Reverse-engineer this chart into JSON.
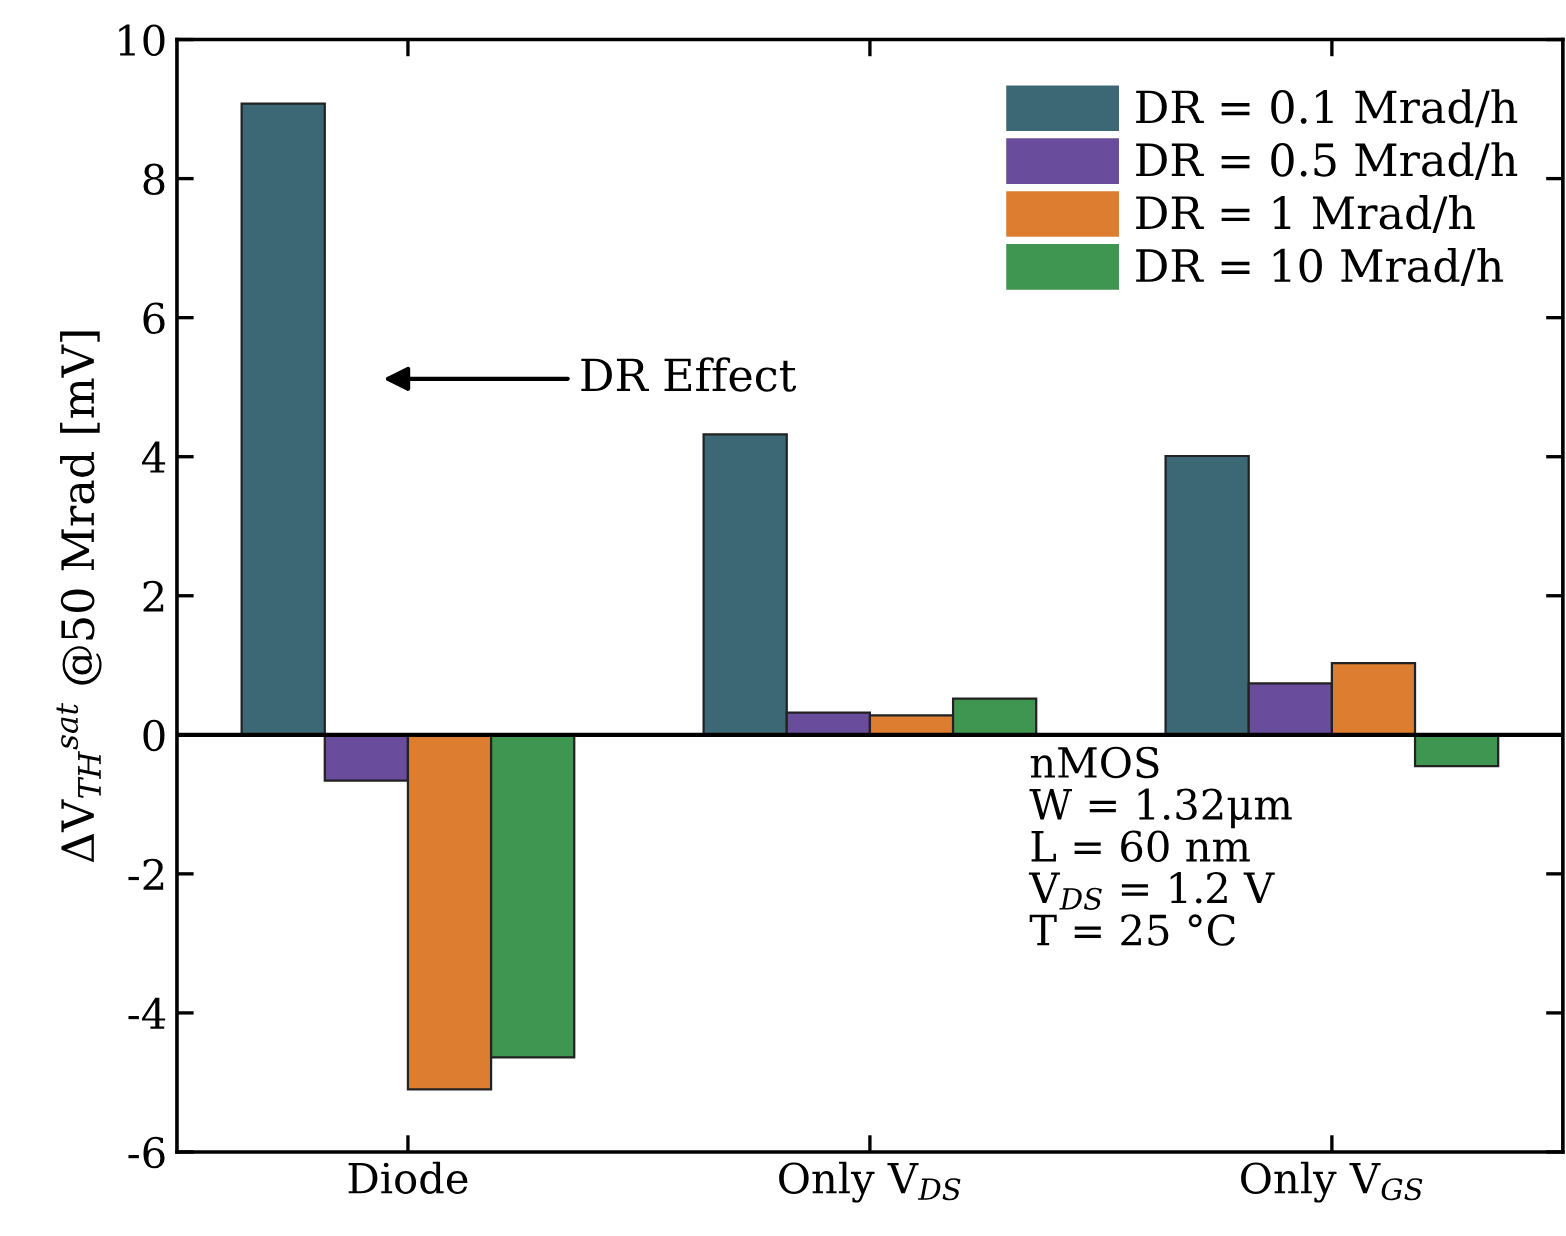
{
  "chart_data": {
    "type": "bar",
    "ylabel": "ΔV$_{TH}$$^{sat}$ @50 Mrad [mV]",
    "categories": [
      "Diode",
      "Only V$_{DS}$",
      "Only V$_{GS}$"
    ],
    "series": [
      {
        "name": "DR = 0.1 Mrad/h",
        "color": "#3b6874",
        "values": [
          9.08,
          4.32,
          4.01
        ]
      },
      {
        "name": "DR = 0.5 Mrad/h",
        "color": "#6a4c9c",
        "values": [
          -0.66,
          0.32,
          0.74
        ]
      },
      {
        "name": "DR = 1 Mrad/h",
        "color": "#dc7d30",
        "values": [
          -5.1,
          0.28,
          1.03
        ]
      },
      {
        "name": "DR = 10 Mrad/h",
        "color": "#3f9650",
        "values": [
          -4.64,
          0.52,
          -0.45
        ]
      }
    ],
    "ylim": [
      -6,
      10
    ],
    "yticks": [
      -6,
      -4,
      -2,
      0,
      2,
      4,
      6,
      8,
      10
    ],
    "ref_lines": [
      {
        "axis": "y",
        "value": 0,
        "label": null,
        "color": "#000000"
      }
    ],
    "annotations": [
      "DR Effect",
      "nMOS",
      "W = 1.32μm",
      "L = 60 nm",
      "V$_{DS}$ = 1.2 V",
      "T = 25 °C"
    ],
    "legend": "top right",
    "grid": false
  }
}
